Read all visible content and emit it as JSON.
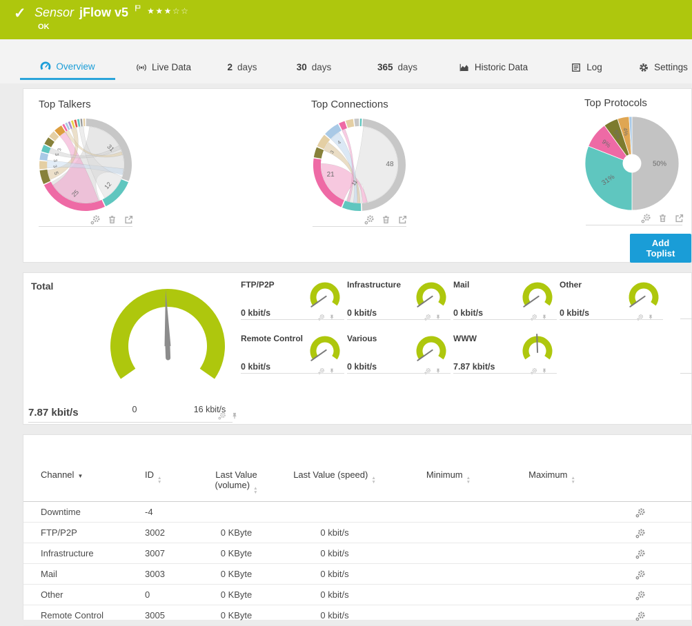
{
  "header": {
    "type_label": "Sensor",
    "name": "jFlow v5",
    "status": "OK",
    "check_icon": "✓",
    "stars_filled": "★★★",
    "stars_empty": "☆☆"
  },
  "tabs": [
    {
      "label": "Overview"
    },
    {
      "label": "Live Data"
    },
    {
      "num": "2",
      "unit": "days"
    },
    {
      "num": "30",
      "unit": "days"
    },
    {
      "num": "365",
      "unit": "days"
    },
    {
      "label": "Historic Data"
    },
    {
      "label": "Log"
    },
    {
      "label": "Settings"
    }
  ],
  "toplists": {
    "add_button": "Add Toplist",
    "charts": [
      {
        "title": "Top Talkers",
        "kind": "chord",
        "segments": [
          {
            "v": 31,
            "c": "#c7c7c7"
          },
          {
            "v": 12,
            "c": "#5fc6bf"
          },
          {
            "v": 25,
            "c": "#ee6aa5"
          },
          {
            "v": 5.3,
            "c": "#87813a"
          },
          {
            "v": 3.3,
            "c": "#e4cfa4"
          },
          {
            "v": 3,
            "c": "#a9c9e6"
          },
          {
            "v": 2.8,
            "c": "#5fc6bf"
          },
          {
            "v": 3,
            "c": "#87813a"
          },
          {
            "v": 2.8,
            "c": "#e4cfa4"
          },
          {
            "v": 3.3,
            "c": "#dd9e3f"
          },
          {
            "v": 1.1,
            "c": "#ee6aa5"
          },
          {
            "v": 1.1,
            "c": "#a9c9e6"
          },
          {
            "v": 1.1,
            "c": "#b08bc9"
          },
          {
            "v": 1.1,
            "c": "#e8d44d"
          },
          {
            "v": 1.1,
            "c": "#d9534f"
          },
          {
            "v": 1.1,
            "c": "#5fc6bf"
          },
          {
            "v": 1.0,
            "c": "#9a9a9a"
          },
          {
            "v": 1.0,
            "c": "#e4cfa4"
          }
        ],
        "labels": [
          {
            "t": "31",
            "a": 56,
            "r": 44,
            "rot": 45,
            "s": 9
          },
          {
            "t": "12",
            "a": 133,
            "r": 44,
            "rot": -50,
            "s": 9
          },
          {
            "t": "25",
            "a": 200,
            "r": 44,
            "rot": -45,
            "s": 9
          },
          {
            "t": "5",
            "a": 254,
            "r": 44,
            "rot": 70,
            "s": 8
          },
          {
            "t": "3",
            "a": 267,
            "r": 44,
            "rot": 75,
            "s": 7
          },
          {
            "t": "3",
            "a": 278,
            "r": 44,
            "rot": 80,
            "s": 7
          },
          {
            "t": "3",
            "a": 290,
            "r": 44,
            "rot": 85,
            "s": 7
          },
          {
            "t": "3",
            "a": 300,
            "r": 44,
            "rot": -85,
            "s": 7
          }
        ],
        "ribbons": [
          {
            "a1": 6,
            "a2": 104,
            "b1": 158,
            "b2": 243,
            "c": "#d0d0d0",
            "o": 0.5
          },
          {
            "a1": 160,
            "a2": 238,
            "b1": 318,
            "b2": 329,
            "c": "#f2a9ce",
            "o": 0.6
          },
          {
            "a1": 247,
            "a2": 262,
            "b1": 338,
            "b2": 346,
            "c": "#dcc79e",
            "o": 0.55
          },
          {
            "a1": 265,
            "a2": 277,
            "b1": 96,
            "b2": 106,
            "c": "#c8dcf0",
            "o": 0.5
          },
          {
            "a1": 108,
            "a2": 150,
            "b1": 350,
            "b2": 357,
            "c": "#d8d8d8",
            "o": 0.45
          },
          {
            "a1": 288,
            "a2": 296,
            "b1": 60,
            "b2": 66,
            "c": "#cfcfcf",
            "o": 0.5
          },
          {
            "a1": 328,
            "a2": 334,
            "b1": 70,
            "b2": 75,
            "c": "#e0cba2",
            "o": 0.5
          }
        ]
      },
      {
        "title": "Top Connections",
        "kind": "chord",
        "segments": [
          {
            "v": 1,
            "c": "#5fc6bf"
          },
          {
            "v": 48,
            "c": "#c7c7c7"
          },
          {
            "v": 7,
            "c": "#5fc6bf"
          },
          {
            "v": 21,
            "c": "#ee6aa5"
          },
          {
            "v": 4,
            "c": "#87813a"
          },
          {
            "v": 5,
            "c": "#e4cfa4"
          },
          {
            "v": 6,
            "c": "#a9c9e6"
          },
          {
            "v": 2.5,
            "c": "#ee6aa5"
          },
          {
            "v": 3,
            "c": "#e4cfa4"
          },
          {
            "v": 2,
            "c": "#c7c7c7"
          }
        ],
        "labels": [
          {
            "t": "48",
            "a": 88,
            "r": 44,
            "rot": 0,
            "s": 10
          },
          {
            "t": "21",
            "a": 252,
            "r": 44,
            "rot": 0,
            "s": 10
          },
          {
            "t": "11",
            "a": 196,
            "r": 27,
            "rot": -55,
            "s": 8
          },
          {
            "t": "3",
            "a": 295,
            "r": 44,
            "rot": -60,
            "s": 7
          },
          {
            "t": "4",
            "a": 318,
            "r": 44,
            "rot": -40,
            "s": 7
          }
        ],
        "ribbons": [
          {
            "a1": 6,
            "a2": 170,
            "b1": 176,
            "b2": 200,
            "c": "#dadada",
            "o": 0.5
          },
          {
            "a1": 204,
            "a2": 272,
            "b1": 168,
            "b2": 175,
            "c": "#f4b6d4",
            "o": 0.75
          },
          {
            "a1": 292,
            "a2": 306,
            "b1": 179,
            "b2": 183,
            "c": "#dcc79e",
            "o": 0.6
          },
          {
            "a1": 312,
            "a2": 328,
            "b1": 184,
            "b2": 189,
            "c": "#c3d9ee",
            "o": 0.6
          },
          {
            "a1": 333,
            "a2": 338,
            "b1": 195,
            "b2": 199,
            "c": "#f2a9ce",
            "o": 0.6
          }
        ]
      },
      {
        "title": "Top Protocols",
        "kind": "donut",
        "slices": [
          {
            "pct": 50,
            "c": "#c3c3c3"
          },
          {
            "pct": 31,
            "c": "#5fc6bf"
          },
          {
            "pct": 9,
            "c": "#ee6aa5"
          },
          {
            "pct": 5,
            "c": "#7d7b2e"
          },
          {
            "pct": 4,
            "c": "#dfa653"
          },
          {
            "pct": 1,
            "c": "#a9c9e6"
          }
        ],
        "labels": [
          {
            "t": "50%",
            "a": 90,
            "r": 40,
            "rot": 0,
            "s": 10
          },
          {
            "t": "31%",
            "a": 236,
            "r": 42,
            "rot": -34,
            "s": 10
          },
          {
            "t": "9%",
            "a": 308,
            "r": 47,
            "rot": 38,
            "s": 9
          },
          {
            "t": "5%",
            "a": 333,
            "r": 47,
            "rot": 63,
            "s": 9
          },
          {
            "t": "4%",
            "a": 349,
            "r": 47,
            "rot": 79,
            "s": 8
          }
        ]
      }
    ]
  },
  "gauges": {
    "green": "#aec70d",
    "total": {
      "label": "Total",
      "value": "7.87 kbit/s",
      "min_label": "0",
      "max_label": "16 kbit/s",
      "min": 0,
      "max": 16,
      "value_num": 7.87
    },
    "channels": [
      {
        "label": "FTP/P2P",
        "value": "0 kbit/s",
        "num": 0,
        "max": 16
      },
      {
        "label": "Infrastructure",
        "value": "0 kbit/s",
        "num": 0,
        "max": 16
      },
      {
        "label": "Mail",
        "value": "0 kbit/s",
        "num": 0,
        "max": 16
      },
      {
        "label": "Other",
        "value": "0 kbit/s",
        "num": 0,
        "max": 16
      },
      {
        "label": "Remote Control",
        "value": "0 kbit/s",
        "num": 0,
        "max": 16
      },
      {
        "label": "Various",
        "value": "0 kbit/s",
        "num": 0,
        "max": 16
      },
      {
        "label": "WWW",
        "value": "7.87 kbit/s",
        "num": 7.87,
        "max": 16
      }
    ]
  },
  "table": {
    "columns": [
      {
        "label": "Channel"
      },
      {
        "label": "ID"
      },
      {
        "label": "Last Value",
        "label2": "(volume)"
      },
      {
        "label": "Last Value (speed)"
      },
      {
        "label": "Minimum"
      },
      {
        "label": "Maximum"
      }
    ],
    "rows": [
      {
        "channel": "Downtime",
        "id": "-4",
        "volume": "",
        "speed": "",
        "min": "",
        "max": ""
      },
      {
        "channel": "FTP/P2P",
        "id": "3002",
        "volume": "0 KByte",
        "speed": "0 kbit/s",
        "min": "",
        "max": ""
      },
      {
        "channel": "Infrastructure",
        "id": "3007",
        "volume": "0 KByte",
        "speed": "0 kbit/s",
        "min": "",
        "max": ""
      },
      {
        "channel": "Mail",
        "id": "3003",
        "volume": "0 KByte",
        "speed": "0 kbit/s",
        "min": "",
        "max": ""
      },
      {
        "channel": "Other",
        "id": "0",
        "volume": "0 KByte",
        "speed": "0 kbit/s",
        "min": "",
        "max": ""
      },
      {
        "channel": "Remote Control",
        "id": "3005",
        "volume": "0 KByte",
        "speed": "0 kbit/s",
        "min": "",
        "max": ""
      }
    ]
  }
}
